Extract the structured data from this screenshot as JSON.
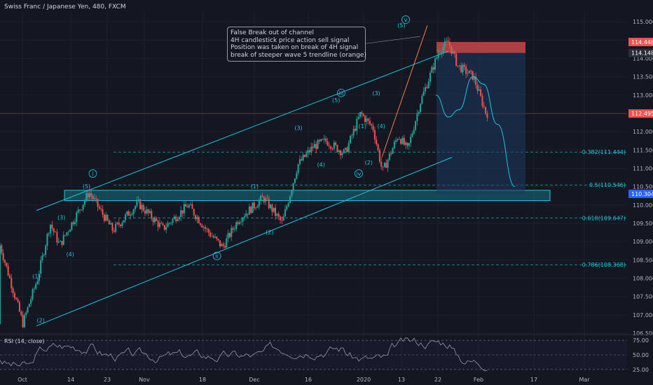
{
  "header": {
    "title": "Swiss Franc / Japanese Yen, 480, FXCM"
  },
  "annotation": {
    "lines": [
      "False Break out of channel",
      "4H candlestick price action sell signal",
      "Position was taken on break of 4H signal",
      "break of steeper wave 5 trendline (orange)"
    ]
  },
  "rsi": {
    "label": "RSI (14, close)",
    "levels": [
      "75.00",
      "50.00",
      "25.00"
    ]
  },
  "colors": {
    "background": "#131722",
    "up": "#26a69a",
    "down": "#ef5350",
    "channel": "#22c3dc",
    "trendline_orange": "#f57c4a",
    "zone": "#1ba3b3",
    "stop_box": "#ef5350",
    "target_box": "#1e3a5f",
    "rsi_line": "#9598a1"
  },
  "chart_data": {
    "type": "candlestick",
    "price_axis": {
      "ticks": [
        "115.000",
        "114.500",
        "114.000",
        "113.500",
        "113.000",
        "112.500",
        "112.000",
        "111.500",
        "111.000",
        "110.500",
        "110.000",
        "109.500",
        "109.000",
        "108.500",
        "108.000",
        "107.500",
        "107.000",
        "106.500"
      ],
      "markers": [
        {
          "label": "114.448",
          "value": 114.448,
          "color": "#ef5350"
        },
        {
          "label": "114.148",
          "value": 114.148,
          "color": "#2a2e39"
        },
        {
          "label": "112.495",
          "value": 112.495,
          "color": "#ef5350"
        },
        {
          "label": "110.304",
          "value": 110.304,
          "color": "#2962ff"
        }
      ]
    },
    "time_axis": {
      "ticks": [
        "Oct",
        "14",
        "23",
        "Nov",
        "18",
        "Dec",
        "16",
        "2020",
        "13",
        "22",
        "Feb",
        "17",
        "Mar"
      ]
    },
    "fib_levels": [
      {
        "label": "0.382(111.444)",
        "value": 111.444
      },
      {
        "label": "0.5(110.546)",
        "value": 110.546
      },
      {
        "label": "0.618(109.647)",
        "value": 109.647
      },
      {
        "label": "0.786(108.368)",
        "value": 108.368
      }
    ],
    "zone": {
      "top": 110.4,
      "bottom": 110.12
    },
    "position": {
      "entry": 114.148,
      "stop": 114.448,
      "target": 110.304
    },
    "swing_points": [
      {
        "t": 0.036,
        "p": 106.75
      },
      {
        "t": 0.06,
        "p": 108.0
      },
      {
        "t": 0.08,
        "p": 109.5
      },
      {
        "t": 0.095,
        "p": 108.9
      },
      {
        "t": 0.142,
        "p": 110.35
      },
      {
        "t": 0.18,
        "p": 109.3
      },
      {
        "t": 0.22,
        "p": 110.05
      },
      {
        "t": 0.26,
        "p": 109.35
      },
      {
        "t": 0.3,
        "p": 110.0
      },
      {
        "t": 0.33,
        "p": 109.3
      },
      {
        "t": 0.355,
        "p": 108.85
      },
      {
        "t": 0.38,
        "p": 109.6
      },
      {
        "t": 0.42,
        "p": 110.2
      },
      {
        "t": 0.45,
        "p": 109.5
      },
      {
        "t": 0.475,
        "p": 111.1
      },
      {
        "t": 0.5,
        "p": 111.6
      },
      {
        "t": 0.52,
        "p": 111.75
      },
      {
        "t": 0.55,
        "p": 111.4
      },
      {
        "t": 0.575,
        "p": 112.5
      },
      {
        "t": 0.595,
        "p": 112.1
      },
      {
        "t": 0.61,
        "p": 110.9
      },
      {
        "t": 0.635,
        "p": 111.9
      },
      {
        "t": 0.65,
        "p": 111.5
      },
      {
        "t": 0.67,
        "p": 112.8
      },
      {
        "t": 0.7,
        "p": 114.2
      },
      {
        "t": 0.715,
        "p": 114.45
      },
      {
        "t": 0.73,
        "p": 113.8
      },
      {
        "t": 0.755,
        "p": 113.5
      },
      {
        "t": 0.775,
        "p": 112.5
      }
    ],
    "wave_labels": [
      {
        "text": "(2)",
        "t": 0.065,
        "p": 106.8,
        "circled": false
      },
      {
        "text": "(1)",
        "t": 0.058,
        "p": 108.0,
        "circled": false
      },
      {
        "text": "(3)",
        "t": 0.098,
        "p": 109.6,
        "circled": false
      },
      {
        "text": "(4)",
        "t": 0.112,
        "p": 108.6,
        "circled": false
      },
      {
        "text": "(5)",
        "t": 0.138,
        "p": 110.45,
        "circled": false
      },
      {
        "text": "i",
        "t": 0.148,
        "p": 110.8,
        "circled": true
      },
      {
        "text": "(1)",
        "t": 0.406,
        "p": 110.45,
        "circled": false
      },
      {
        "text": "(2)",
        "t": 0.43,
        "p": 109.2,
        "circled": false
      },
      {
        "text": "ii",
        "t": 0.346,
        "p": 108.55,
        "circled": true
      },
      {
        "text": "(3)",
        "t": 0.476,
        "p": 112.05,
        "circled": false
      },
      {
        "text": "(4)",
        "t": 0.512,
        "p": 111.05,
        "circled": false
      },
      {
        "text": "(5)",
        "t": 0.536,
        "p": 112.8,
        "circled": false
      },
      {
        "text": "iii",
        "t": 0.544,
        "p": 113.0,
        "circled": true
      },
      {
        "text": "iv",
        "t": 0.572,
        "p": 110.8,
        "circled": true
      },
      {
        "text": "(1)",
        "t": 0.578,
        "p": 112.1,
        "circled": false
      },
      {
        "text": "(2)",
        "t": 0.588,
        "p": 111.1,
        "circled": false
      },
      {
        "text": "(3)",
        "t": 0.6,
        "p": 113.0,
        "circled": false
      },
      {
        "text": "(4)",
        "t": 0.608,
        "p": 112.1,
        "circled": false
      },
      {
        "text": "(5)",
        "t": 0.64,
        "p": 114.85,
        "circled": false
      },
      {
        "text": "v",
        "t": 0.647,
        "p": 115.0,
        "circled": true
      }
    ]
  }
}
